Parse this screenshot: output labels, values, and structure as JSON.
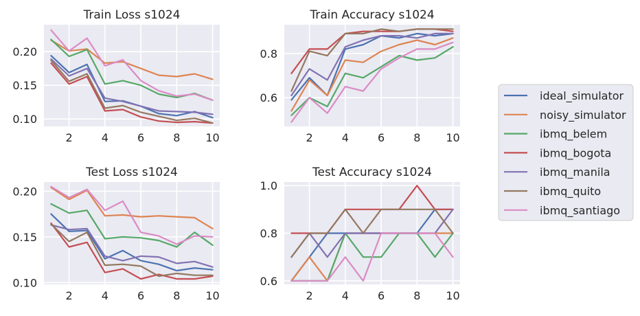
{
  "legend": {
    "placement": "right",
    "entries": [
      {
        "name": "ideal_simulator",
        "color": "#4c72b0"
      },
      {
        "name": "noisy_simulator",
        "color": "#dd8452"
      },
      {
        "name": "ibmq_belem",
        "color": "#55a868"
      },
      {
        "name": "ibmq_bogota",
        "color": "#c44e52"
      },
      {
        "name": "ibmq_manila",
        "color": "#8172b3"
      },
      {
        "name": "ibmq_quito",
        "color": "#937860"
      },
      {
        "name": "ibmq_santiago",
        "color": "#da8bc3"
      }
    ]
  },
  "chart_data": [
    {
      "type": "line",
      "title": "Train Loss s1024",
      "xlabel": "",
      "ylabel": "",
      "x": [
        1,
        2,
        3,
        4,
        5,
        6,
        7,
        8,
        9,
        10
      ],
      "xlim": [
        0.6,
        10.4
      ],
      "ylim": [
        0.089,
        0.24
      ],
      "xticks": [
        2,
        4,
        6,
        8,
        10
      ],
      "yticks": [
        0.1,
        0.15,
        0.2
      ],
      "ytick_labels": [
        "0.10",
        "0.15",
        "0.20"
      ],
      "grid": true,
      "series": [
        {
          "name": "ideal_simulator",
          "values": [
            0.194,
            0.169,
            0.181,
            0.126,
            0.127,
            0.119,
            0.108,
            0.105,
            0.111,
            0.102
          ]
        },
        {
          "name": "noisy_simulator",
          "values": [
            0.217,
            0.201,
            0.204,
            0.183,
            0.185,
            0.175,
            0.165,
            0.163,
            0.167,
            0.159
          ]
        },
        {
          "name": "ibmq_belem",
          "values": [
            0.218,
            0.193,
            0.203,
            0.152,
            0.157,
            0.15,
            0.137,
            0.132,
            0.138,
            0.128
          ]
        },
        {
          "name": "ibmq_bogota",
          "values": [
            0.183,
            0.152,
            0.163,
            0.112,
            0.114,
            0.103,
            0.097,
            0.095,
            0.096,
            0.094
          ]
        },
        {
          "name": "ibmq_manila",
          "values": [
            0.189,
            0.164,
            0.175,
            0.131,
            0.126,
            0.119,
            0.112,
            0.111,
            0.11,
            0.107
          ]
        },
        {
          "name": "ibmq_quito",
          "values": [
            0.187,
            0.156,
            0.167,
            0.116,
            0.12,
            0.11,
            0.104,
            0.098,
            0.101,
            0.094
          ]
        },
        {
          "name": "ibmq_santiago",
          "values": [
            0.232,
            0.201,
            0.22,
            0.179,
            0.188,
            0.157,
            0.142,
            0.134,
            0.137,
            0.128
          ]
        }
      ]
    },
    {
      "type": "line",
      "title": "Train Accuracy s1024",
      "xlabel": "",
      "ylabel": "",
      "x": [
        1,
        2,
        3,
        4,
        5,
        6,
        7,
        8,
        9,
        10
      ],
      "xlim": [
        0.6,
        10.4
      ],
      "ylim": [
        0.47,
        0.93
      ],
      "xticks": [
        2,
        4,
        6,
        8,
        10
      ],
      "yticks": [
        0.6,
        0.8
      ],
      "ytick_labels": [
        "0.6",
        "0.8"
      ],
      "grid": true,
      "series": [
        {
          "name": "ideal_simulator",
          "values": [
            0.59,
            0.69,
            0.61,
            0.82,
            0.84,
            0.88,
            0.87,
            0.89,
            0.88,
            0.89
          ]
        },
        {
          "name": "noisy_simulator",
          "values": [
            0.54,
            0.68,
            0.61,
            0.77,
            0.76,
            0.81,
            0.84,
            0.86,
            0.84,
            0.87
          ]
        },
        {
          "name": "ibmq_belem",
          "values": [
            0.52,
            0.6,
            0.56,
            0.71,
            0.69,
            0.74,
            0.79,
            0.77,
            0.78,
            0.83
          ]
        },
        {
          "name": "ibmq_bogota",
          "values": [
            0.71,
            0.82,
            0.82,
            0.89,
            0.9,
            0.9,
            0.9,
            0.91,
            0.91,
            0.9
          ]
        },
        {
          "name": "ibmq_manila",
          "values": [
            0.61,
            0.73,
            0.68,
            0.83,
            0.86,
            0.88,
            0.88,
            0.87,
            0.89,
            0.89
          ]
        },
        {
          "name": "ibmq_quito",
          "values": [
            0.63,
            0.81,
            0.79,
            0.89,
            0.89,
            0.91,
            0.9,
            0.91,
            0.91,
            0.91
          ]
        },
        {
          "name": "ibmq_santiago",
          "values": [
            0.49,
            0.6,
            0.53,
            0.65,
            0.63,
            0.73,
            0.78,
            0.82,
            0.82,
            0.85
          ]
        }
      ]
    },
    {
      "type": "line",
      "title": "Test Loss s1024",
      "xlabel": "",
      "ylabel": "",
      "x": [
        1,
        2,
        3,
        4,
        5,
        6,
        7,
        8,
        9,
        10
      ],
      "xlim": [
        0.6,
        10.4
      ],
      "ylim": [
        0.098,
        0.21
      ],
      "xticks": [
        2,
        4,
        6,
        8,
        10
      ],
      "yticks": [
        0.1,
        0.15,
        0.2
      ],
      "ytick_labels": [
        "0.10",
        "0.15",
        "0.20"
      ],
      "grid": true,
      "series": [
        {
          "name": "ideal_simulator",
          "values": [
            0.175,
            0.156,
            0.157,
            0.126,
            0.135,
            0.124,
            0.12,
            0.113,
            0.116,
            0.114
          ]
        },
        {
          "name": "noisy_simulator",
          "values": [
            0.204,
            0.191,
            0.201,
            0.173,
            0.174,
            0.172,
            0.173,
            0.172,
            0.171,
            0.159
          ]
        },
        {
          "name": "ibmq_belem",
          "values": [
            0.186,
            0.176,
            0.179,
            0.148,
            0.15,
            0.149,
            0.146,
            0.139,
            0.155,
            0.141
          ]
        },
        {
          "name": "ibmq_bogota",
          "values": [
            0.165,
            0.139,
            0.144,
            0.111,
            0.115,
            0.104,
            0.109,
            0.104,
            0.104,
            0.107
          ]
        },
        {
          "name": "ibmq_manila",
          "values": [
            0.163,
            0.158,
            0.159,
            0.129,
            0.124,
            0.129,
            0.128,
            0.121,
            0.123,
            0.117
          ]
        },
        {
          "name": "ibmq_quito",
          "values": [
            0.164,
            0.145,
            0.155,
            0.119,
            0.12,
            0.118,
            0.107,
            0.11,
            0.108,
            0.108
          ]
        },
        {
          "name": "ibmq_santiago",
          "values": [
            0.205,
            0.193,
            0.202,
            0.179,
            0.189,
            0.155,
            0.151,
            0.142,
            0.151,
            0.15
          ]
        }
      ]
    },
    {
      "type": "line",
      "title": "Test Accuracy s1024",
      "xlabel": "",
      "ylabel": "",
      "x": [
        1,
        2,
        3,
        4,
        5,
        6,
        7,
        8,
        9,
        10
      ],
      "xlim": [
        0.6,
        10.4
      ],
      "ylim": [
        0.585,
        1.015
      ],
      "xticks": [
        2,
        4,
        6,
        8,
        10
      ],
      "yticks": [
        0.6,
        0.8,
        1.0
      ],
      "ytick_labels": [
        "0.6",
        "0.8",
        "1.0"
      ],
      "grid": true,
      "series": [
        {
          "name": "ideal_simulator",
          "values": [
            0.6,
            0.7,
            0.8,
            0.8,
            0.8,
            0.8,
            0.8,
            0.8,
            0.9,
            0.9
          ]
        },
        {
          "name": "noisy_simulator",
          "values": [
            0.6,
            0.7,
            0.6,
            0.8,
            0.8,
            0.8,
            0.8,
            0.8,
            0.8,
            0.8
          ]
        },
        {
          "name": "ibmq_belem",
          "values": [
            0.6,
            0.6,
            0.6,
            0.8,
            0.7,
            0.7,
            0.8,
            0.8,
            0.7,
            0.8
          ]
        },
        {
          "name": "ibmq_bogota",
          "values": [
            0.8,
            0.8,
            0.8,
            0.9,
            0.9,
            0.9,
            0.9,
            1.0,
            0.9,
            0.9
          ]
        },
        {
          "name": "ibmq_manila",
          "values": [
            0.7,
            0.8,
            0.7,
            0.8,
            0.8,
            0.8,
            0.8,
            0.8,
            0.8,
            0.9
          ]
        },
        {
          "name": "ibmq_quito",
          "values": [
            0.7,
            0.8,
            0.8,
            0.9,
            0.8,
            0.9,
            0.9,
            0.9,
            0.9,
            0.8
          ]
        },
        {
          "name": "ibmq_santiago",
          "values": [
            0.6,
            0.6,
            0.6,
            0.7,
            0.6,
            0.8,
            0.8,
            0.8,
            0.8,
            0.7
          ]
        }
      ]
    }
  ]
}
